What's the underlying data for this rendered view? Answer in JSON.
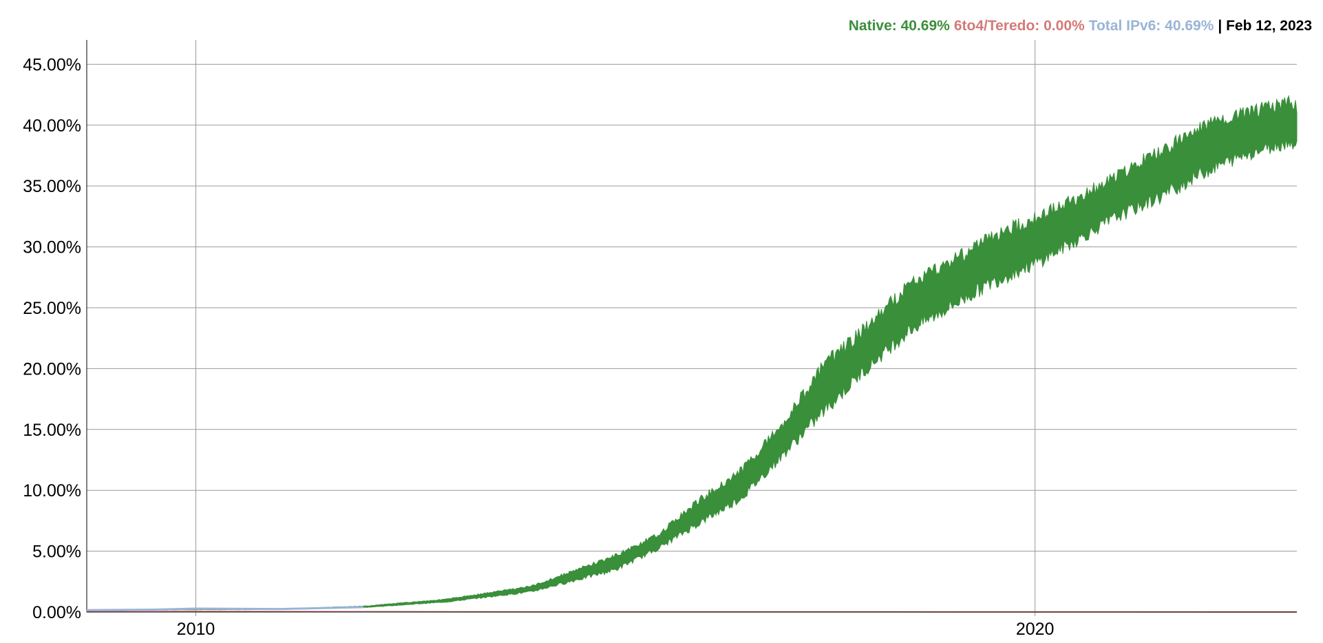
{
  "legend": {
    "native": "Native: 40.69%",
    "sixto4": "6to4/Teredo: 0.00%",
    "total": "Total IPv6: 40.69%",
    "date": "| Feb 12, 2023"
  },
  "colors": {
    "native": "#3a8f3a",
    "sixto4": "#d47a7a",
    "total": "#9ab4d8",
    "date": "#000000",
    "grid": "#9a9a9a",
    "axis": "#000000"
  },
  "chart_data": {
    "type": "area",
    "title": "",
    "xlabel": "",
    "ylabel": "",
    "x_axis": {
      "min": 2008.7,
      "max": 2023.12,
      "ticks": [
        2010,
        2020
      ],
      "tick_labels": [
        "2010",
        "2020"
      ]
    },
    "y_axis": {
      "min": 0,
      "max": 47,
      "ticks": [
        0,
        5,
        10,
        15,
        20,
        25,
        30,
        35,
        40,
        45
      ],
      "tick_labels": [
        "0.00%",
        "5.00%",
        "10.00%",
        "15.00%",
        "20.00%",
        "25.00%",
        "30.00%",
        "35.00%",
        "40.00%",
        "45.00%"
      ]
    },
    "grid": true,
    "legend_placement": "top-right",
    "series": [
      {
        "name": "Native",
        "band": [
          {
            "x": 2008.7,
            "low": 0.1,
            "high": 0.15
          },
          {
            "x": 2009.0,
            "low": 0.12,
            "high": 0.18
          },
          {
            "x": 2010.0,
            "low": 0.18,
            "high": 0.25
          },
          {
            "x": 2011.0,
            "low": 0.2,
            "high": 0.27
          },
          {
            "x": 2012.0,
            "low": 0.35,
            "high": 0.5
          },
          {
            "x": 2013.0,
            "low": 0.8,
            "high": 1.1
          },
          {
            "x": 2014.0,
            "low": 1.6,
            "high": 2.2
          },
          {
            "x": 2015.0,
            "low": 3.3,
            "high": 4.8
          },
          {
            "x": 2015.5,
            "low": 5.0,
            "high": 6.5
          },
          {
            "x": 2016.0,
            "low": 7.0,
            "high": 9.5
          },
          {
            "x": 2016.5,
            "low": 9.0,
            "high": 12.0
          },
          {
            "x": 2017.0,
            "low": 12.5,
            "high": 16.0
          },
          {
            "x": 2017.5,
            "low": 16.0,
            "high": 21.0
          },
          {
            "x": 2018.0,
            "low": 19.5,
            "high": 24.0
          },
          {
            "x": 2018.5,
            "low": 22.5,
            "high": 27.5
          },
          {
            "x": 2019.0,
            "low": 24.5,
            "high": 29.5
          },
          {
            "x": 2019.5,
            "low": 26.5,
            "high": 31.5
          },
          {
            "x": 2020.0,
            "low": 28.0,
            "high": 33.0
          },
          {
            "x": 2020.5,
            "low": 30.0,
            "high": 34.5
          },
          {
            "x": 2021.0,
            "low": 32.0,
            "high": 36.5
          },
          {
            "x": 2021.5,
            "low": 33.5,
            "high": 38.5
          },
          {
            "x": 2022.0,
            "low": 35.5,
            "high": 40.5
          },
          {
            "x": 2022.5,
            "low": 37.0,
            "high": 41.5
          },
          {
            "x": 2023.0,
            "low": 38.0,
            "high": 42.5
          },
          {
            "x": 2023.12,
            "low": 38.0,
            "high": 42.0
          }
        ]
      },
      {
        "name": "6to4/Teredo",
        "values": [
          {
            "x": 2008.7,
            "y": 0.02
          },
          {
            "x": 2010.0,
            "y": 0.05
          },
          {
            "x": 2012.0,
            "y": 0.03
          },
          {
            "x": 2015.0,
            "y": 0.01
          },
          {
            "x": 2018.0,
            "y": 0.01
          },
          {
            "x": 2023.12,
            "y": 0.0
          }
        ]
      },
      {
        "name": "Total IPv6",
        "values": [
          {
            "x": 2008.7,
            "y": 0.15
          },
          {
            "x": 2009.5,
            "y": 0.2
          },
          {
            "x": 2010.0,
            "y": 0.28
          },
          {
            "x": 2011.0,
            "y": 0.25
          },
          {
            "x": 2012.0,
            "y": 0.4
          }
        ]
      }
    ]
  }
}
